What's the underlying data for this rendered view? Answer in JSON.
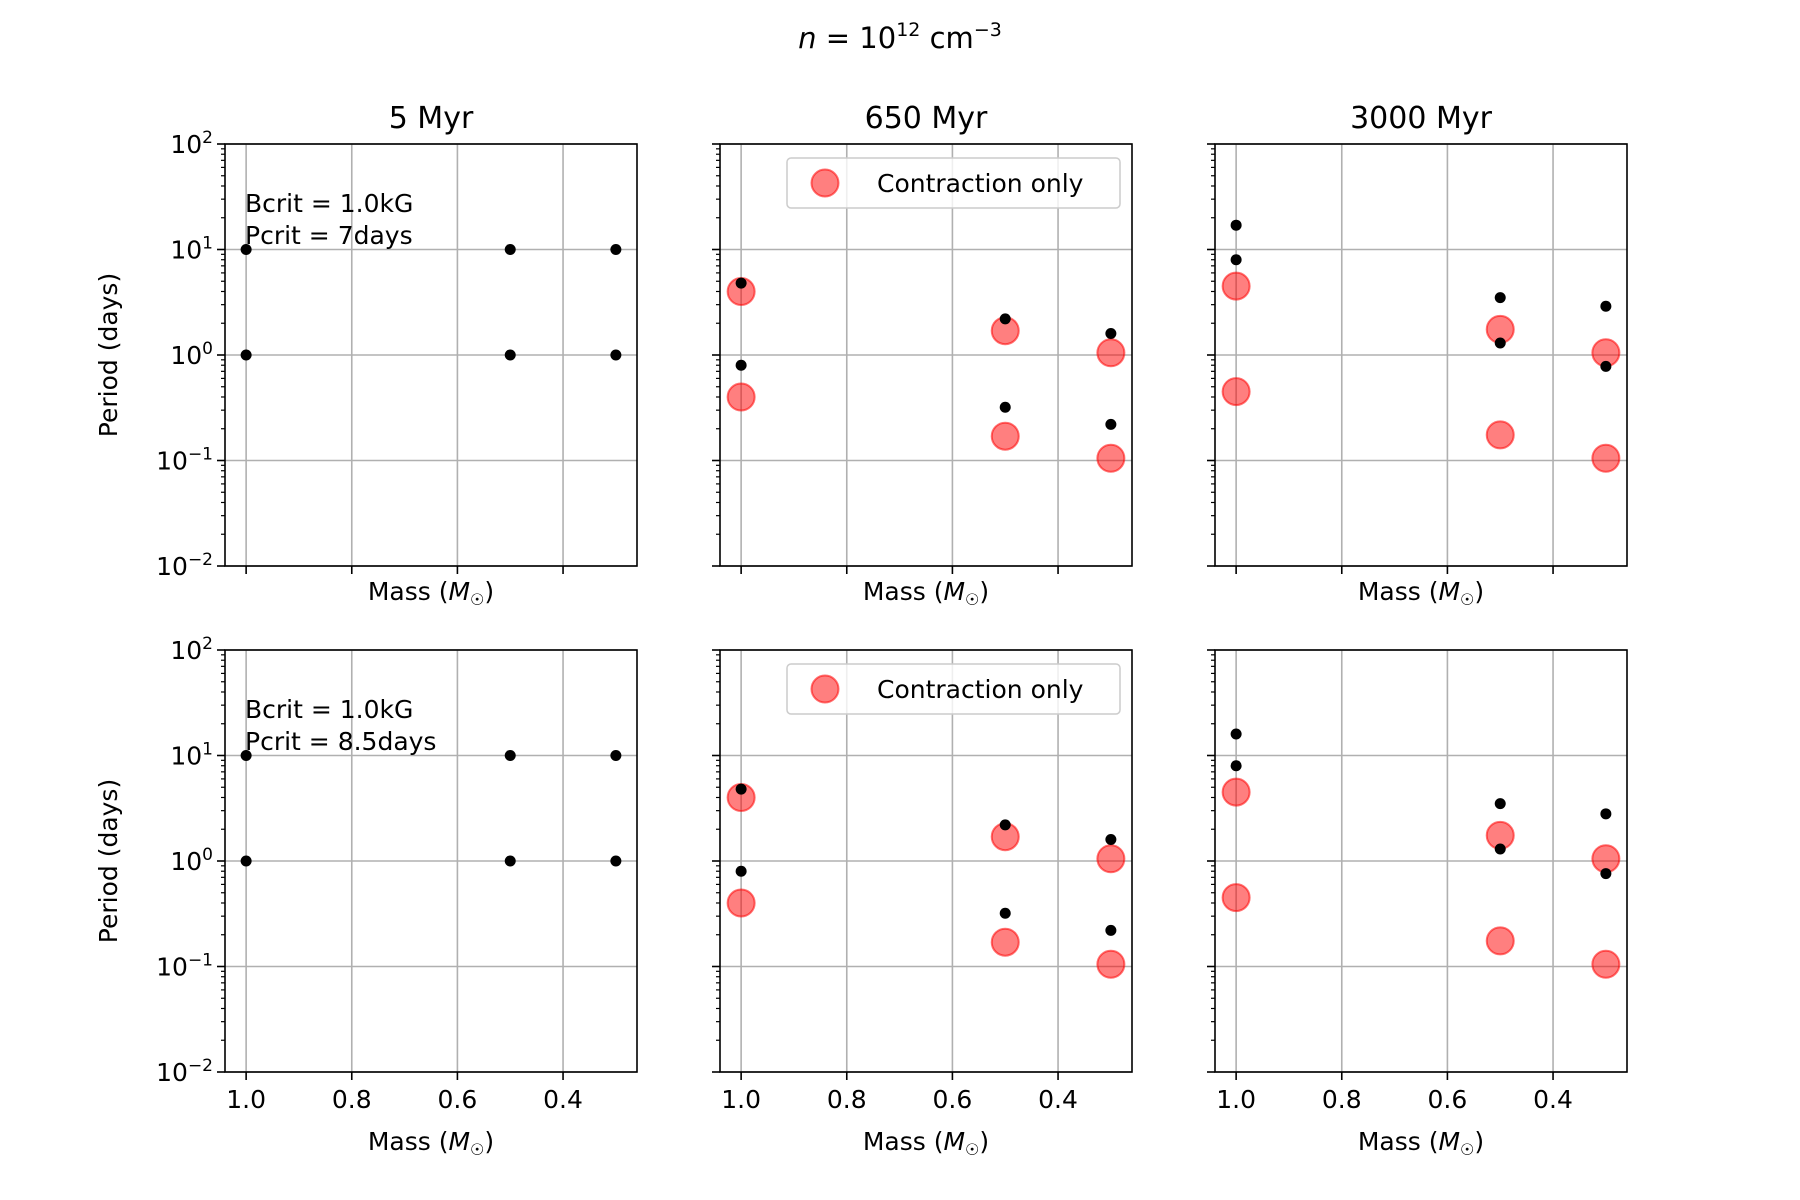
{
  "figure": {
    "suptitle_prefix": "n = 10",
    "suptitle_exp": "12",
    "suptitle_unit": " cm",
    "suptitle_unit_exp": "−3"
  },
  "style": {
    "point_color": "#000000",
    "model_color": "#ff0000",
    "model_alpha": 0.5,
    "grid_color": "#b0b0b0"
  },
  "chart_data": [
    {
      "type": "scatter",
      "row": 0,
      "col": 0,
      "title": "5 Myr",
      "xlabel": "Mass (M☉)",
      "ylabel": "Period (days)",
      "xlim": [
        1.04,
        0.26
      ],
      "ylim": [
        0.01,
        100
      ],
      "yscale": "log",
      "grid": true,
      "x_ticks": [
        1.0,
        0.8,
        0.6,
        0.4
      ],
      "x_tick_labels_shown": false,
      "y_ticks": [
        "10^2",
        "10^1",
        "10^0",
        "10^-1",
        "10^-2"
      ],
      "y_tick_labels_shown": true,
      "annotation": [
        "Bcrit = 1.0kG",
        "Pcrit = 7days"
      ],
      "legend": null,
      "series": [
        {
          "kind": "observed",
          "points": [
            [
              1.0,
              10
            ],
            [
              1.0,
              1
            ],
            [
              0.5,
              10
            ],
            [
              0.5,
              1
            ],
            [
              0.3,
              10
            ],
            [
              0.3,
              1
            ]
          ]
        }
      ]
    },
    {
      "type": "scatter",
      "row": 0,
      "col": 1,
      "title": "650 Myr",
      "xlabel": "Mass (M☉)",
      "ylabel": "",
      "xlim": [
        1.04,
        0.26
      ],
      "ylim": [
        0.01,
        100
      ],
      "yscale": "log",
      "grid": true,
      "x_ticks": [
        1.0,
        0.8,
        0.6,
        0.4
      ],
      "x_tick_labels_shown": false,
      "y_tick_labels_shown": false,
      "annotation": [],
      "legend": {
        "label": "Contraction only",
        "loc": "upper right"
      },
      "series": [
        {
          "kind": "observed",
          "points": [
            [
              1.0,
              4.8
            ],
            [
              1.0,
              0.8
            ],
            [
              0.5,
              2.2
            ],
            [
              0.5,
              0.32
            ],
            [
              0.3,
              1.6
            ],
            [
              0.3,
              0.22
            ]
          ]
        },
        {
          "kind": "model",
          "name": "Contraction only",
          "points": [
            [
              1.0,
              4.0
            ],
            [
              1.0,
              0.4
            ],
            [
              0.5,
              1.7
            ],
            [
              0.5,
              0.17
            ],
            [
              0.3,
              1.05
            ],
            [
              0.3,
              0.105
            ]
          ]
        }
      ]
    },
    {
      "type": "scatter",
      "row": 0,
      "col": 2,
      "title": "3000 Myr",
      "xlabel": "Mass (M☉)",
      "ylabel": "",
      "xlim": [
        1.04,
        0.26
      ],
      "ylim": [
        0.01,
        100
      ],
      "yscale": "log",
      "grid": true,
      "x_ticks": [
        1.0,
        0.8,
        0.6,
        0.4
      ],
      "x_tick_labels_shown": false,
      "y_tick_labels_shown": false,
      "annotation": [],
      "legend": null,
      "series": [
        {
          "kind": "observed",
          "points": [
            [
              1.0,
              17
            ],
            [
              1.0,
              8
            ],
            [
              0.5,
              3.5
            ],
            [
              0.5,
              1.3
            ],
            [
              0.3,
              2.9
            ],
            [
              0.3,
              0.78
            ]
          ]
        },
        {
          "kind": "model",
          "name": "Contraction only",
          "points": [
            [
              1.0,
              4.5
            ],
            [
              1.0,
              0.45
            ],
            [
              0.5,
              1.75
            ],
            [
              0.5,
              0.175
            ],
            [
              0.3,
              1.05
            ],
            [
              0.3,
              0.105
            ]
          ]
        }
      ]
    },
    {
      "type": "scatter",
      "row": 1,
      "col": 0,
      "title": "",
      "xlabel": "Mass (M☉)",
      "ylabel": "Period (days)",
      "xlim": [
        1.04,
        0.26
      ],
      "ylim": [
        0.01,
        100
      ],
      "yscale": "log",
      "grid": true,
      "x_ticks": [
        1.0,
        0.8,
        0.6,
        0.4
      ],
      "x_tick_labels_shown": true,
      "y_ticks": [
        "10^2",
        "10^1",
        "10^0",
        "10^-1",
        "10^-2"
      ],
      "y_tick_labels_shown": true,
      "annotation": [
        "Bcrit = 1.0kG",
        "Pcrit = 8.5days"
      ],
      "legend": null,
      "series": [
        {
          "kind": "observed",
          "points": [
            [
              1.0,
              10
            ],
            [
              1.0,
              1
            ],
            [
              0.5,
              10
            ],
            [
              0.5,
              1
            ],
            [
              0.3,
              10
            ],
            [
              0.3,
              1
            ]
          ]
        }
      ]
    },
    {
      "type": "scatter",
      "row": 1,
      "col": 1,
      "title": "",
      "xlabel": "Mass (M☉)",
      "ylabel": "",
      "xlim": [
        1.04,
        0.26
      ],
      "ylim": [
        0.01,
        100
      ],
      "yscale": "log",
      "grid": true,
      "x_ticks": [
        1.0,
        0.8,
        0.6,
        0.4
      ],
      "x_tick_labels_shown": true,
      "y_tick_labels_shown": false,
      "annotation": [],
      "legend": {
        "label": "Contraction only",
        "loc": "upper right"
      },
      "series": [
        {
          "kind": "observed",
          "points": [
            [
              1.0,
              4.8
            ],
            [
              1.0,
              0.8
            ],
            [
              0.5,
              2.2
            ],
            [
              0.5,
              0.32
            ],
            [
              0.3,
              1.6
            ],
            [
              0.3,
              0.22
            ]
          ]
        },
        {
          "kind": "model",
          "name": "Contraction only",
          "points": [
            [
              1.0,
              4.0
            ],
            [
              1.0,
              0.4
            ],
            [
              0.5,
              1.7
            ],
            [
              0.5,
              0.17
            ],
            [
              0.3,
              1.05
            ],
            [
              0.3,
              0.105
            ]
          ]
        }
      ]
    },
    {
      "type": "scatter",
      "row": 1,
      "col": 2,
      "title": "",
      "xlabel": "Mass (M☉)",
      "ylabel": "",
      "xlim": [
        1.04,
        0.26
      ],
      "ylim": [
        0.01,
        100
      ],
      "yscale": "log",
      "grid": true,
      "x_ticks": [
        1.0,
        0.8,
        0.6,
        0.4
      ],
      "x_tick_labels_shown": true,
      "y_tick_labels_shown": false,
      "annotation": [],
      "legend": null,
      "series": [
        {
          "kind": "observed",
          "points": [
            [
              1.0,
              16
            ],
            [
              1.0,
              8
            ],
            [
              0.5,
              3.5
            ],
            [
              0.5,
              1.3
            ],
            [
              0.3,
              2.8
            ],
            [
              0.3,
              0.76
            ]
          ]
        },
        {
          "kind": "model",
          "name": "Contraction only",
          "points": [
            [
              1.0,
              4.5
            ],
            [
              1.0,
              0.45
            ],
            [
              0.5,
              1.75
            ],
            [
              0.5,
              0.175
            ],
            [
              0.3,
              1.05
            ],
            [
              0.3,
              0.105
            ]
          ]
        }
      ]
    }
  ]
}
